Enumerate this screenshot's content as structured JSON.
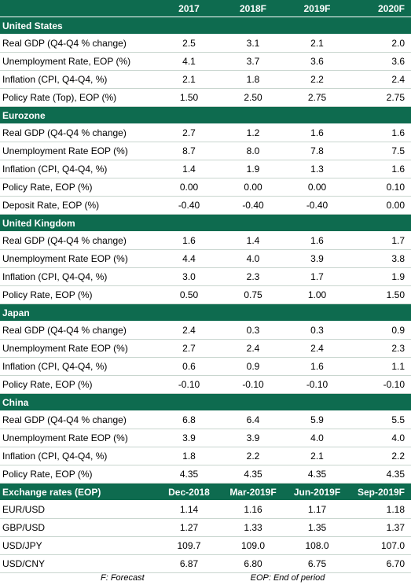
{
  "columns": [
    "",
    "2017",
    "2018F",
    "2019F",
    "2020F"
  ],
  "sections": [
    {
      "title": "United States",
      "rows": [
        {
          "label": "Real GDP (Q4-Q4 % change)",
          "values": [
            "2.5",
            "3.1",
            "2.1",
            "2.0"
          ]
        },
        {
          "label": "Unemployment Rate, EOP (%)",
          "values": [
            "4.1",
            "3.7",
            "3.6",
            "3.6"
          ]
        },
        {
          "label": "Inflation (CPI, Q4-Q4, %)",
          "values": [
            "2.1",
            "1.8",
            "2.2",
            "2.4"
          ]
        },
        {
          "label": "Policy Rate (Top), EOP (%)",
          "values": [
            "1.50",
            "2.50",
            "2.75",
            "2.75"
          ]
        }
      ]
    },
    {
      "title": "Eurozone",
      "rows": [
        {
          "label": "Real GDP (Q4-Q4 % change)",
          "values": [
            "2.7",
            "1.2",
            "1.6",
            "1.6"
          ]
        },
        {
          "label": "Unemployment Rate EOP (%)",
          "values": [
            "8.7",
            "8.0",
            "7.8",
            "7.5"
          ]
        },
        {
          "label": "Inflation (CPI, Q4-Q4, %)",
          "values": [
            "1.4",
            "1.9",
            "1.3",
            "1.6"
          ]
        },
        {
          "label": "Policy Rate, EOP (%)",
          "values": [
            "0.00",
            "0.00",
            "0.00",
            "0.10"
          ]
        },
        {
          "label": "Deposit Rate, EOP (%)",
          "values": [
            "-0.40",
            "-0.40",
            "-0.40",
            "0.00"
          ]
        }
      ]
    },
    {
      "title": "United Kingdom",
      "rows": [
        {
          "label": "Real GDP (Q4-Q4 % change)",
          "values": [
            "1.6",
            "1.4",
            "1.6",
            "1.7"
          ]
        },
        {
          "label": "Unemployment Rate EOP (%)",
          "values": [
            "4.4",
            "4.0",
            "3.9",
            "3.8"
          ]
        },
        {
          "label": "Inflation (CPI, Q4-Q4, %)",
          "values": [
            "3.0",
            "2.3",
            "1.7",
            "1.9"
          ]
        },
        {
          "label": "Policy Rate, EOP (%)",
          "values": [
            "0.50",
            "0.75",
            "1.00",
            "1.50"
          ]
        }
      ]
    },
    {
      "title": "Japan",
      "rows": [
        {
          "label": "Real GDP (Q4-Q4 % change)",
          "values": [
            "2.4",
            "0.3",
            "0.3",
            "0.9"
          ]
        },
        {
          "label": "Unemployment Rate EOP (%)",
          "values": [
            "2.7",
            "2.4",
            "2.4",
            "2.3"
          ]
        },
        {
          "label": "Inflation (CPI, Q4-Q4, %)",
          "values": [
            "0.6",
            "0.9",
            "1.6",
            "1.1"
          ]
        },
        {
          "label": "Policy Rate, EOP (%)",
          "values": [
            "-0.10",
            "-0.10",
            "-0.10",
            "-0.10"
          ]
        }
      ]
    },
    {
      "title": "China",
      "rows": [
        {
          "label": "Real GDP (Q4-Q4 % change)",
          "values": [
            "6.8",
            "6.4",
            "5.9",
            "5.5"
          ]
        },
        {
          "label": "Unemployment Rate EOP (%)",
          "values": [
            "3.9",
            "3.9",
            "4.0",
            "4.0"
          ]
        },
        {
          "label": "Inflation (CPI, Q4-Q4, %)",
          "values": [
            "1.8",
            "2.2",
            "2.1",
            "2.2"
          ]
        },
        {
          "label": "Policy Rate, EOP (%)",
          "values": [
            "4.35",
            "4.35",
            "4.35",
            "4.35"
          ]
        }
      ]
    }
  ],
  "fx": {
    "title": "Exchange rates (EOP)",
    "columns": [
      "Dec-2018",
      "Mar-2019F",
      "Jun-2019F",
      "Sep-2019F"
    ],
    "rows": [
      {
        "label": "EUR/USD",
        "values": [
          "1.14",
          "1.16",
          "1.17",
          "1.18"
        ]
      },
      {
        "label": "GBP/USD",
        "values": [
          "1.27",
          "1.33",
          "1.35",
          "1.37"
        ]
      },
      {
        "label": "USD/JPY",
        "values": [
          "109.7",
          "109.0",
          "108.0",
          "107.0"
        ]
      },
      {
        "label": "USD/CNY",
        "values": [
          "6.87",
          "6.80",
          "6.75",
          "6.70"
        ]
      }
    ]
  },
  "footer": {
    "forecast_note": "F: Forecast",
    "eop_note": "EOP: End of period"
  },
  "colors": {
    "header_bg": "#0e6b4f",
    "header_text": "#ffffff",
    "row_divider": "#c9d6cf"
  }
}
